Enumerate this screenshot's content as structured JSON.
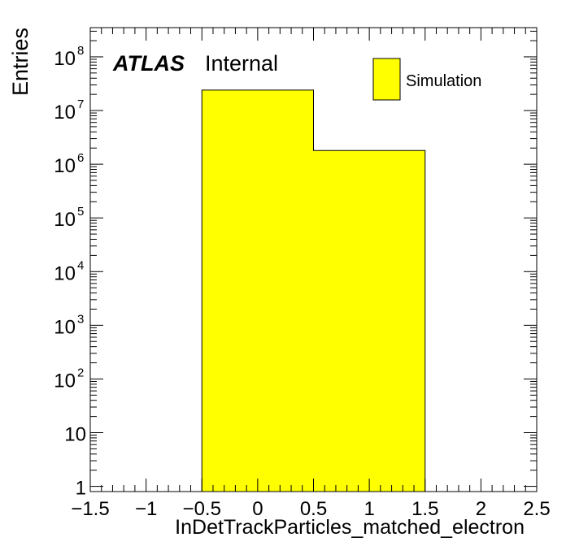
{
  "chart_data": {
    "type": "bar",
    "xlabel": "InDetTrackParticles_matched_electron",
    "ylabel": "Entries",
    "xlim": [
      -1.5,
      2.5
    ],
    "ylim": [
      0.8,
      350000000.0
    ],
    "log_y": true,
    "x_ticks": [
      {
        "v": -1.5,
        "label": "−1.5"
      },
      {
        "v": -1.0,
        "label": "−1"
      },
      {
        "v": -0.5,
        "label": "−0.5"
      },
      {
        "v": 0.0,
        "label": "0"
      },
      {
        "v": 0.5,
        "label": "0.5"
      },
      {
        "v": 1.0,
        "label": "1"
      },
      {
        "v": 1.5,
        "label": "1.5"
      },
      {
        "v": 2.0,
        "label": "2"
      },
      {
        "v": 2.5,
        "label": "2.5"
      }
    ],
    "y_ticks": [
      {
        "v": 1,
        "base": "1",
        "exp": ""
      },
      {
        "v": 10,
        "base": "10",
        "exp": ""
      },
      {
        "v": 100,
        "base": "10",
        "exp": "2"
      },
      {
        "v": 1000,
        "base": "10",
        "exp": "3"
      },
      {
        "v": 10000,
        "base": "10",
        "exp": "4"
      },
      {
        "v": 100000,
        "base": "10",
        "exp": "5"
      },
      {
        "v": 1000000,
        "base": "10",
        "exp": "6"
      },
      {
        "v": 10000000,
        "base": "10",
        "exp": "7"
      },
      {
        "v": 100000000,
        "base": "10",
        "exp": "8"
      }
    ],
    "bins": [
      {
        "low": -0.5,
        "high": 0.5,
        "value": 24000000
      },
      {
        "low": 0.5,
        "high": 1.5,
        "value": 1800000
      }
    ],
    "series": [
      {
        "name": "Simulation",
        "color": "#ffff00"
      }
    ],
    "legend_position": "top-right",
    "annotation": {
      "bold": "ATLAS",
      "text": "Internal"
    }
  }
}
